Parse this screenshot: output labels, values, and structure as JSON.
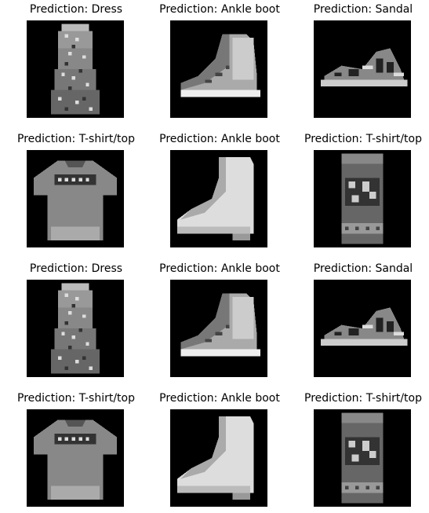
{
  "figure": {
    "panels": [
      {
        "title": "Prediction: Dress",
        "item": "dress"
      },
      {
        "title": "Prediction: Ankle boot",
        "item": "ankle-boot"
      },
      {
        "title": "Prediction: Sandal",
        "item": "sandal"
      },
      {
        "title": "Prediction: T-shirt/top",
        "item": "t-shirt"
      },
      {
        "title": "Prediction: Ankle boot",
        "item": "ankle-boot-side"
      },
      {
        "title": "Prediction: T-shirt/top",
        "item": "sweater"
      },
      {
        "title": "Prediction: Dress",
        "item": "dress"
      },
      {
        "title": "Prediction: Ankle boot",
        "item": "ankle-boot"
      },
      {
        "title": "Prediction: Sandal",
        "item": "sandal"
      },
      {
        "title": "Prediction: T-shirt/top",
        "item": "t-shirt"
      },
      {
        "title": "Prediction: Ankle boot",
        "item": "ankle-boot-side"
      },
      {
        "title": "Prediction: T-shirt/top",
        "item": "sweater"
      }
    ]
  }
}
